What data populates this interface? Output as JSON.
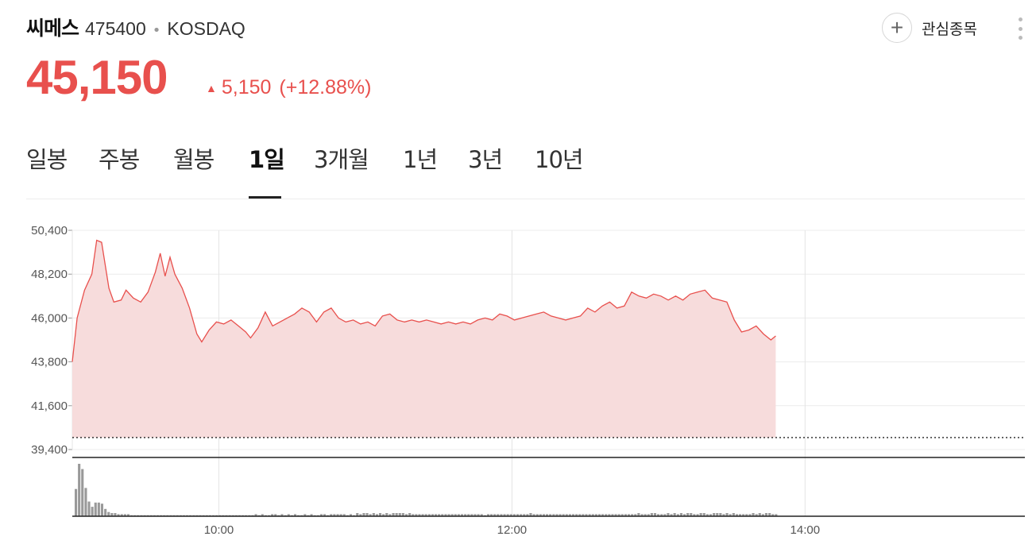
{
  "stock": {
    "name": "씨메스",
    "code": "475400",
    "separator": "•",
    "market": "KOSDAQ",
    "price": "45,150",
    "change_arrow": "▲",
    "change": "5,150",
    "change_pct": "(+12.88%)",
    "color_up": "#e8504d"
  },
  "actions": {
    "watchlist_label": "관심종목",
    "watchlist_icon": "plus-icon",
    "more_icon": "more-vertical-icon"
  },
  "tabs": [
    {
      "label": "일봉",
      "active": false
    },
    {
      "label": "주봉",
      "active": false
    },
    {
      "label": "월봉",
      "active": false
    },
    {
      "label": "1일",
      "active": true
    },
    {
      "label": "3개월",
      "active": false
    },
    {
      "label": "1년",
      "active": false
    },
    {
      "label": "3년",
      "active": false
    },
    {
      "label": "10년",
      "active": false
    }
  ],
  "chart_data": {
    "type": "area",
    "y_ticks": [
      "50,400",
      "48,200",
      "46,000",
      "43,800",
      "41,600",
      "39,400"
    ],
    "x_ticks": [
      "10:00",
      "12:00",
      "14:00"
    ],
    "ylim": [
      39400,
      50400
    ],
    "xlim": [
      "09:00",
      "15:30"
    ],
    "previous_close": 40000,
    "line_color": "#e8504d",
    "fill_color": "#f7dcdc",
    "series": [
      {
        "x": "09:00",
        "y": 43800
      },
      {
        "x": "09:02",
        "y": 46000
      },
      {
        "x": "09:05",
        "y": 47400
      },
      {
        "x": "09:08",
        "y": 48200
      },
      {
        "x": "09:10",
        "y": 49900
      },
      {
        "x": "09:12",
        "y": 49800
      },
      {
        "x": "09:15",
        "y": 47500
      },
      {
        "x": "09:17",
        "y": 46800
      },
      {
        "x": "09:20",
        "y": 46900
      },
      {
        "x": "09:22",
        "y": 47400
      },
      {
        "x": "09:25",
        "y": 47000
      },
      {
        "x": "09:28",
        "y": 46800
      },
      {
        "x": "09:31",
        "y": 47300
      },
      {
        "x": "09:34",
        "y": 48300
      },
      {
        "x": "09:36",
        "y": 49250
      },
      {
        "x": "09:38",
        "y": 48100
      },
      {
        "x": "09:40",
        "y": 49050
      },
      {
        "x": "09:42",
        "y": 48200
      },
      {
        "x": "09:45",
        "y": 47500
      },
      {
        "x": "09:48",
        "y": 46500
      },
      {
        "x": "09:51",
        "y": 45200
      },
      {
        "x": "09:53",
        "y": 44800
      },
      {
        "x": "09:56",
        "y": 45400
      },
      {
        "x": "09:59",
        "y": 45800
      },
      {
        "x": "10:02",
        "y": 45700
      },
      {
        "x": "10:05",
        "y": 45900
      },
      {
        "x": "10:08",
        "y": 45600
      },
      {
        "x": "10:11",
        "y": 45300
      },
      {
        "x": "10:13",
        "y": 45000
      },
      {
        "x": "10:16",
        "y": 45500
      },
      {
        "x": "10:19",
        "y": 46300
      },
      {
        "x": "10:22",
        "y": 45600
      },
      {
        "x": "10:25",
        "y": 45800
      },
      {
        "x": "10:28",
        "y": 46000
      },
      {
        "x": "10:31",
        "y": 46200
      },
      {
        "x": "10:34",
        "y": 46500
      },
      {
        "x": "10:37",
        "y": 46300
      },
      {
        "x": "10:40",
        "y": 45800
      },
      {
        "x": "10:43",
        "y": 46300
      },
      {
        "x": "10:46",
        "y": 46500
      },
      {
        "x": "10:49",
        "y": 46000
      },
      {
        "x": "10:52",
        "y": 45800
      },
      {
        "x": "10:55",
        "y": 45900
      },
      {
        "x": "10:58",
        "y": 45700
      },
      {
        "x": "11:01",
        "y": 45800
      },
      {
        "x": "11:04",
        "y": 45600
      },
      {
        "x": "11:07",
        "y": 46100
      },
      {
        "x": "11:10",
        "y": 46200
      },
      {
        "x": "11:13",
        "y": 45900
      },
      {
        "x": "11:16",
        "y": 45800
      },
      {
        "x": "11:19",
        "y": 45900
      },
      {
        "x": "11:22",
        "y": 45800
      },
      {
        "x": "11:25",
        "y": 45900
      },
      {
        "x": "11:28",
        "y": 45800
      },
      {
        "x": "11:31",
        "y": 45700
      },
      {
        "x": "11:34",
        "y": 45800
      },
      {
        "x": "11:37",
        "y": 45700
      },
      {
        "x": "11:40",
        "y": 45800
      },
      {
        "x": "11:43",
        "y": 45700
      },
      {
        "x": "11:46",
        "y": 45900
      },
      {
        "x": "11:49",
        "y": 46000
      },
      {
        "x": "11:52",
        "y": 45900
      },
      {
        "x": "11:55",
        "y": 46200
      },
      {
        "x": "11:58",
        "y": 46100
      },
      {
        "x": "12:01",
        "y": 45900
      },
      {
        "x": "12:04",
        "y": 46000
      },
      {
        "x": "12:07",
        "y": 46100
      },
      {
        "x": "12:10",
        "y": 46200
      },
      {
        "x": "12:13",
        "y": 46300
      },
      {
        "x": "12:16",
        "y": 46100
      },
      {
        "x": "12:19",
        "y": 46000
      },
      {
        "x": "12:22",
        "y": 45900
      },
      {
        "x": "12:25",
        "y": 46000
      },
      {
        "x": "12:28",
        "y": 46100
      },
      {
        "x": "12:31",
        "y": 46500
      },
      {
        "x": "12:34",
        "y": 46300
      },
      {
        "x": "12:37",
        "y": 46600
      },
      {
        "x": "12:40",
        "y": 46800
      },
      {
        "x": "12:43",
        "y": 46500
      },
      {
        "x": "12:46",
        "y": 46600
      },
      {
        "x": "12:49",
        "y": 47300
      },
      {
        "x": "12:52",
        "y": 47100
      },
      {
        "x": "12:55",
        "y": 47000
      },
      {
        "x": "12:58",
        "y": 47200
      },
      {
        "x": "13:01",
        "y": 47100
      },
      {
        "x": "13:04",
        "y": 46900
      },
      {
        "x": "13:07",
        "y": 47100
      },
      {
        "x": "13:10",
        "y": 46900
      },
      {
        "x": "13:13",
        "y": 47200
      },
      {
        "x": "13:16",
        "y": 47300
      },
      {
        "x": "13:19",
        "y": 47400
      },
      {
        "x": "13:22",
        "y": 47000
      },
      {
        "x": "13:25",
        "y": 46900
      },
      {
        "x": "13:28",
        "y": 46800
      },
      {
        "x": "13:31",
        "y": 45900
      },
      {
        "x": "13:34",
        "y": 45300
      },
      {
        "x": "13:37",
        "y": 45400
      },
      {
        "x": "13:40",
        "y": 45600
      },
      {
        "x": "13:43",
        "y": 45200
      },
      {
        "x": "13:46",
        "y": 44900
      },
      {
        "x": "13:48",
        "y": 45100
      }
    ],
    "volume": [
      26,
      50,
      45,
      27,
      14,
      9,
      13,
      13,
      12,
      7,
      4,
      3,
      3,
      2,
      2,
      2,
      2,
      1,
      1,
      1,
      1,
      1,
      1,
      1,
      1,
      1,
      1,
      1,
      1,
      1,
      1,
      1,
      1,
      1,
      1,
      1,
      1,
      1,
      1,
      1,
      1,
      1,
      1,
      1,
      1,
      1,
      1,
      1,
      1,
      1,
      1,
      1,
      1,
      1,
      1,
      2,
      1,
      2,
      1,
      1,
      2,
      2,
      1,
      2,
      1,
      2,
      1,
      2,
      1,
      1,
      2,
      1,
      2,
      1,
      1,
      2,
      2,
      1,
      2,
      2,
      2,
      2,
      2,
      1,
      2,
      1,
      3,
      2,
      3,
      3,
      2,
      3,
      2,
      3,
      2,
      3,
      2,
      3,
      3,
      3,
      3,
      2,
      3,
      2,
      2,
      2,
      2,
      2,
      2,
      2,
      2,
      2,
      2,
      2,
      2,
      2,
      2,
      2,
      2,
      2,
      2,
      2,
      2,
      2,
      2,
      1,
      2,
      2,
      2,
      2,
      2,
      2,
      2,
      2,
      2,
      2,
      2,
      2,
      2,
      3,
      2,
      2,
      2,
      2,
      2,
      2,
      2,
      2,
      2,
      2,
      2,
      2,
      2,
      2,
      2,
      2,
      2,
      2,
      2,
      2,
      2,
      2,
      2,
      2,
      2,
      2,
      2,
      2,
      2,
      2,
      2,
      2,
      3,
      2,
      2,
      2,
      3,
      3,
      2,
      2,
      2,
      3,
      2,
      3,
      2,
      3,
      2,
      3,
      3,
      2,
      2,
      3,
      3,
      2,
      2,
      3,
      3,
      3,
      2,
      3,
      2,
      3,
      2,
      2,
      2,
      2,
      2,
      3,
      2,
      3,
      2,
      3,
      3,
      2,
      2
    ]
  }
}
